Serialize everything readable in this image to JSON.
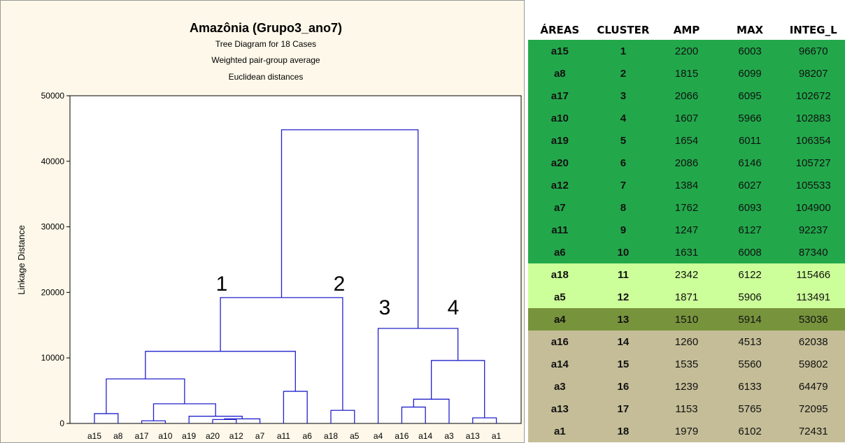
{
  "chart_data": {
    "type": "dendrogram",
    "title": "Amazônia (Grupo3_ano7)",
    "subtitles": [
      "Tree Diagram for 18 Cases",
      "Weighted pair-group average",
      "Euclidean distances"
    ],
    "ylabel": "Linkage Distance",
    "ylim": [
      0,
      50000
    ],
    "yticks": [
      0,
      10000,
      20000,
      30000,
      40000,
      50000
    ],
    "color": "#2222cc",
    "tree": {
      "height": 44800,
      "children": [
        {
          "height": 19200,
          "children": [
            {
              "height": 11000,
              "children": [
                {
                  "height": 6800,
                  "children": [
                    {
                      "height": 1500,
                      "children": [
                        "a15",
                        "a8"
                      ]
                    },
                    {
                      "height": 3000,
                      "children": [
                        {
                          "height": 400,
                          "children": [
                            "a17",
                            "a10"
                          ]
                        },
                        {
                          "height": 1100,
                          "children": [
                            "a19",
                            {
                              "height": 700,
                              "children": [
                                {
                                  "height": 600,
                                  "children": [
                                    "a20",
                                    "a12"
                                  ]
                                },
                                "a7"
                              ]
                            }
                          ]
                        }
                      ]
                    }
                  ]
                },
                {
                  "height": 4900,
                  "children": [
                    "a11",
                    "a6"
                  ]
                }
              ]
            },
            {
              "height": 2000,
              "children": [
                "a18",
                "a5"
              ]
            }
          ]
        },
        {
          "height": 14500,
          "children": [
            "a4",
            {
              "height": 9600,
              "children": [
                {
                  "height": 3700,
                  "children": [
                    {
                      "height": 2500,
                      "children": [
                        "a16",
                        "a14"
                      ]
                    },
                    "a3"
                  ]
                },
                {
                  "height": 850,
                  "children": [
                    "a13",
                    "a1"
                  ]
                }
              ]
            }
          ]
        }
      ]
    },
    "annotations": [
      "1",
      "2",
      "3",
      "4"
    ]
  },
  "table": {
    "header": [
      "ÁREAS",
      "CLUSTER",
      "AMP",
      "MAX",
      "INTEG_L"
    ],
    "rows": [
      {
        "color": "#22a84b",
        "cells": [
          "a15",
          1,
          2200,
          6003,
          96670
        ]
      },
      {
        "color": "#22a84b",
        "cells": [
          "a8",
          2,
          1815,
          6099,
          98207
        ]
      },
      {
        "color": "#22a84b",
        "cells": [
          "a17",
          3,
          2066,
          6095,
          102672
        ]
      },
      {
        "color": "#22a84b",
        "cells": [
          "a10",
          4,
          1607,
          5966,
          102883
        ]
      },
      {
        "color": "#22a84b",
        "cells": [
          "a19",
          5,
          1654,
          6011,
          106354
        ]
      },
      {
        "color": "#22a84b",
        "cells": [
          "a20",
          6,
          2086,
          6146,
          105727
        ]
      },
      {
        "color": "#22a84b",
        "cells": [
          "a12",
          7,
          1384,
          6027,
          105533
        ]
      },
      {
        "color": "#22a84b",
        "cells": [
          "a7",
          8,
          1762,
          6093,
          104900
        ]
      },
      {
        "color": "#22a84b",
        "cells": [
          "a11",
          9,
          1247,
          6127,
          92237
        ]
      },
      {
        "color": "#22a84b",
        "cells": [
          "a6",
          10,
          1631,
          6008,
          87340
        ]
      },
      {
        "color": "#ccff99",
        "cells": [
          "a18",
          11,
          2342,
          6122,
          115466
        ]
      },
      {
        "color": "#ccff99",
        "cells": [
          "a5",
          12,
          1871,
          5906,
          113491
        ]
      },
      {
        "color": "#77933c",
        "cells": [
          "a4",
          13,
          1510,
          5914,
          53036
        ]
      },
      {
        "color": "#c4bd97",
        "cells": [
          "a16",
          14,
          1260,
          4513,
          62038
        ]
      },
      {
        "color": "#c4bd97",
        "cells": [
          "a14",
          15,
          1535,
          5560,
          59802
        ]
      },
      {
        "color": "#c4bd97",
        "cells": [
          "a3",
          16,
          1239,
          6133,
          64479
        ]
      },
      {
        "color": "#c4bd97",
        "cells": [
          "a13",
          17,
          1153,
          5765,
          72095
        ]
      },
      {
        "color": "#c4bd97",
        "cells": [
          "a1",
          18,
          1979,
          6102,
          72431
        ]
      }
    ]
  }
}
